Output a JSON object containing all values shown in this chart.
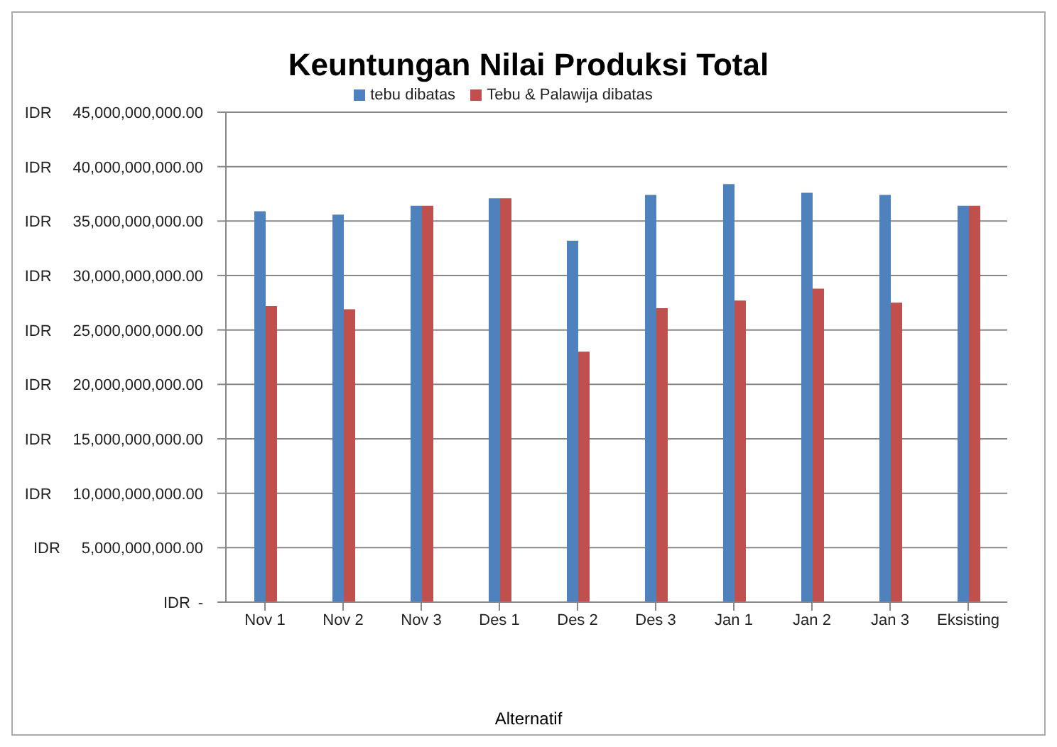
{
  "chart_data": {
    "type": "bar",
    "title": "Keuntungan Nilai Produksi Total",
    "xlabel": "Alternatif",
    "categories": [
      "Nov 1",
      "Nov 2",
      "Nov 3",
      "Des 1",
      "Des 2",
      "Des 3",
      "Jan 1",
      "Jan 2",
      "Jan 3",
      "Eksisting"
    ],
    "series": [
      {
        "name": "tebu dibatas",
        "color": "#4f81bd",
        "values": [
          35900000000,
          35600000000,
          36400000000,
          37100000000,
          33200000000,
          37400000000,
          38400000000,
          37600000000,
          37400000000,
          36400000000
        ]
      },
      {
        "name": "Tebu & Palawija dibatas",
        "color": "#c0504d",
        "values": [
          27200000000,
          26900000000,
          36400000000,
          37100000000,
          23000000000,
          27000000000,
          27700000000,
          28800000000,
          27500000000,
          36400000000
        ]
      }
    ],
    "ylim": [
      0,
      45000000000
    ],
    "yticks": [
      {
        "value": 0,
        "label": "-"
      },
      {
        "value": 5000000000,
        "label": "5,000,000,000.00"
      },
      {
        "value": 10000000000,
        "label": "10,000,000,000.00"
      },
      {
        "value": 15000000000,
        "label": "15,000,000,000.00"
      },
      {
        "value": 20000000000,
        "label": "20,000,000,000.00"
      },
      {
        "value": 25000000000,
        "label": "25,000,000,000.00"
      },
      {
        "value": 30000000000,
        "label": "30,000,000,000.00"
      },
      {
        "value": 35000000000,
        "label": "35,000,000,000.00"
      },
      {
        "value": 40000000000,
        "label": "40,000,000,000.00"
      },
      {
        "value": 45000000000,
        "label": "45,000,000,000.00"
      }
    ],
    "annotations": [
      "IDR"
    ],
    "grid": "y",
    "legend": "top"
  }
}
